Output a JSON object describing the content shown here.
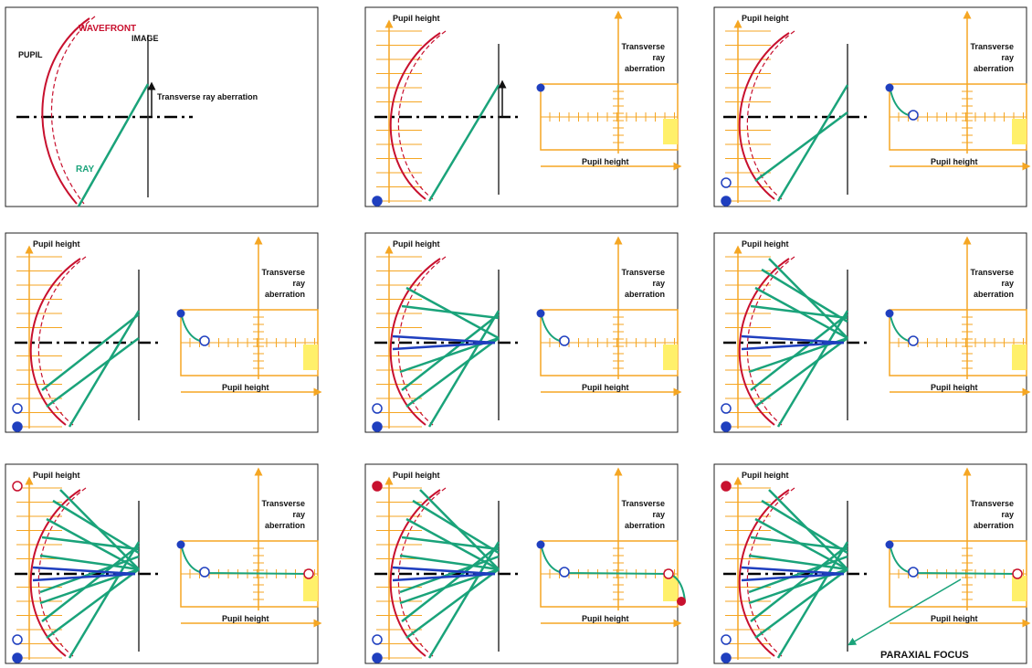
{
  "labels": {
    "pupil": "PUPIL",
    "wavefront": "WAVEFRONT",
    "image": "IMAGE",
    "transverse_ray_aberration": "Transverse ray aberration",
    "ray": "RAY",
    "pupil_height": "Pupil height",
    "tra_line1": "Transverse",
    "tra_line2": "ray",
    "tra_line3": "aberration",
    "paraxial_focus": "PARAXIAL FOCUS"
  },
  "colors": {
    "pupil_wavefront": "#c8102e",
    "ray": "#1aa37a",
    "chief_rays": "#1f3fbf",
    "axes": "#f5a623",
    "highlight": "#fff06a",
    "point_blue": "#1f3fbf",
    "point_red": "#c8102e",
    "text": "#111111"
  },
  "panels": [
    {
      "type": "intro",
      "rays": 1
    },
    {
      "type": "plot",
      "rays": 1,
      "curve": "none",
      "top_marker": "blue-filled",
      "bottom_marker": "blue-filled"
    },
    {
      "type": "plot",
      "rays": 2,
      "curve": "partial",
      "top_marker": "blue-filled",
      "bottom_marker": "blue-filled",
      "open_marker": "blue-open"
    },
    {
      "type": "plot",
      "rays": 3,
      "curve": "partial",
      "top_marker": "blue-filled",
      "bottom_marker": "blue-filled",
      "open_marker": "blue-open"
    },
    {
      "type": "plot",
      "rays": 6,
      "curve": "partial",
      "top_marker": "blue-filled",
      "bottom_marker": "blue-filled",
      "open_marker": "blue-open"
    },
    {
      "type": "plot",
      "rays": 8,
      "curve": "partial",
      "top_marker": "blue-filled",
      "bottom_marker": "blue-filled",
      "open_marker": "blue-open"
    },
    {
      "type": "plot",
      "rays": 10,
      "curve": "full",
      "top_marker": "red-open",
      "bottom_marker": "blue-filled",
      "open_marker": "blue-open"
    },
    {
      "type": "plot",
      "rays": 12,
      "curve": "full-drop",
      "top_marker": "red-filled",
      "bottom_marker": "blue-filled",
      "open_marker": "blue-open"
    },
    {
      "type": "plot",
      "rays": 12,
      "curve": "full",
      "top_marker": "red-filled",
      "bottom_marker": "blue-filled",
      "open_marker": "blue-open",
      "annotation": "paraxial"
    }
  ]
}
